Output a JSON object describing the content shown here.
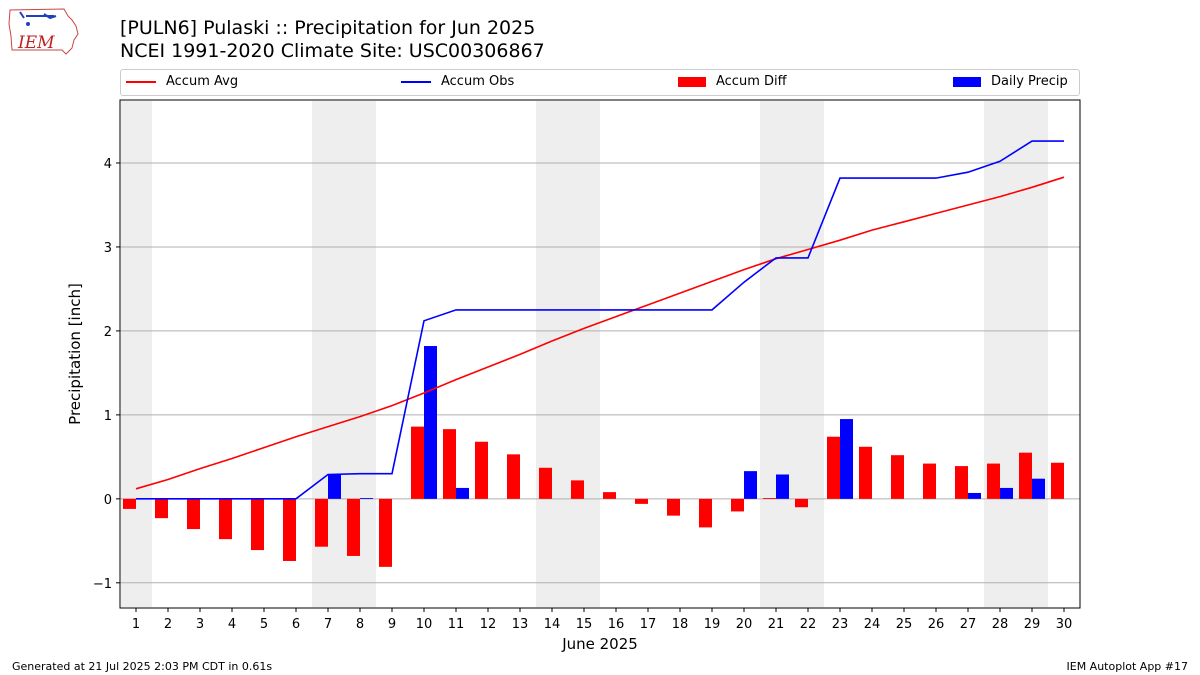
{
  "header": {
    "title_line1": "[PULN6] Pulaski :: Precipitation for Jun 2025",
    "title_line2": "NCEI 1991-2020 Climate Site: USC00306867"
  },
  "logo": {
    "text": "IEM"
  },
  "footer": {
    "left": "Generated at 21 Jul 2025 2:03 PM CDT in 0.61s",
    "right": "IEM Autoplot App #17"
  },
  "colors": {
    "accum_avg": "#ff0000",
    "accum_obs": "#0000ff",
    "accum_diff": "#ff0000",
    "daily_precip": "#0000ff",
    "weekend_shade": "#eeeeee",
    "grid": "#b0b0b0"
  },
  "legend": {
    "items": [
      {
        "label": "Accum Avg",
        "kind": "line",
        "color": "#ff0000"
      },
      {
        "label": "Accum Obs",
        "kind": "line",
        "color": "#0000ff"
      },
      {
        "label": "Accum Diff",
        "kind": "patch",
        "color": "#ff0000"
      },
      {
        "label": "Daily Precip",
        "kind": "patch",
        "color": "#0000ff"
      }
    ]
  },
  "chart_data": {
    "type": "bar",
    "xlabel": "June 2025",
    "ylabel": "Precipitation [inch]",
    "ylim": [
      -1.3,
      4.75
    ],
    "yticks": [
      -1,
      0,
      1,
      2,
      3,
      4
    ],
    "ytick_labels": [
      "−1",
      "0",
      "1",
      "2",
      "3",
      "4"
    ],
    "grid": true,
    "legend_placement": "top",
    "days": [
      1,
      2,
      3,
      4,
      5,
      6,
      7,
      8,
      9,
      10,
      11,
      12,
      13,
      14,
      15,
      16,
      17,
      18,
      19,
      20,
      21,
      22,
      23,
      24,
      25,
      26,
      27,
      28,
      29,
      30
    ],
    "weekend_days": [
      1,
      7,
      8,
      14,
      15,
      21,
      22,
      28,
      29
    ],
    "series": [
      {
        "name": "Accum Avg",
        "type": "line",
        "values": [
          0.12,
          0.23,
          0.36,
          0.48,
          0.61,
          0.74,
          0.86,
          0.98,
          1.11,
          1.26,
          1.42,
          1.57,
          1.72,
          1.88,
          2.03,
          2.17,
          2.31,
          2.45,
          2.59,
          2.73,
          2.86,
          2.97,
          3.08,
          3.2,
          3.3,
          3.4,
          3.5,
          3.6,
          3.71,
          3.83
        ]
      },
      {
        "name": "Accum Obs",
        "type": "line",
        "values": [
          0,
          0,
          0,
          0,
          0,
          0,
          0.29,
          0.3,
          0.3,
          2.12,
          2.25,
          2.25,
          2.25,
          2.25,
          2.25,
          2.25,
          2.25,
          2.25,
          2.25,
          2.58,
          2.87,
          2.87,
          3.82,
          3.82,
          3.82,
          3.82,
          3.89,
          4.02,
          4.26,
          4.26
        ]
      },
      {
        "name": "Accum Diff",
        "type": "bar",
        "values": [
          -0.12,
          -0.23,
          -0.36,
          -0.48,
          -0.61,
          -0.74,
          -0.57,
          -0.68,
          -0.81,
          0.86,
          0.83,
          0.68,
          0.53,
          0.37,
          0.22,
          0.08,
          -0.06,
          -0.2,
          -0.34,
          -0.15,
          0.01,
          -0.1,
          0.74,
          0.62,
          0.52,
          0.42,
          0.39,
          0.42,
          0.55,
          0.43
        ]
      },
      {
        "name": "Daily Precip",
        "type": "bar",
        "values": [
          0,
          0,
          0,
          0,
          0,
          0,
          0.29,
          0.01,
          0,
          1.82,
          0.13,
          0,
          0,
          0,
          0,
          0,
          0,
          0,
          0,
          0.33,
          0.29,
          0,
          0.95,
          0,
          0,
          0,
          0.07,
          0.13,
          0.24,
          0
        ]
      }
    ]
  }
}
